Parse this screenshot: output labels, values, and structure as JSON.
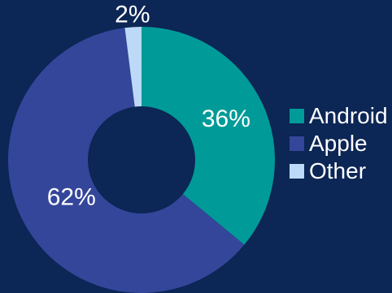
{
  "chart_data": {
    "type": "pie",
    "variant": "donut",
    "categories": [
      "Android",
      "Apple",
      "Other"
    ],
    "values": [
      36,
      62,
      2
    ],
    "labels": [
      "36%",
      "62%",
      "2%"
    ],
    "colors": [
      "#009b98",
      "#34469a",
      "#bcd9f7"
    ],
    "legend": "right",
    "background": "#0c2655",
    "label_color": "#ffffff"
  }
}
